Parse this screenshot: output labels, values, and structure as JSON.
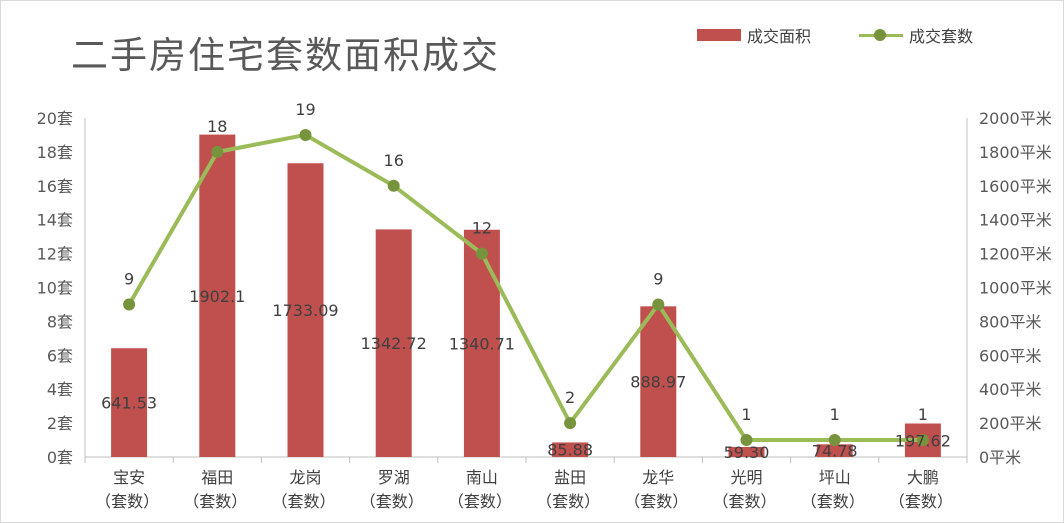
{
  "chart_data": {
    "type": "bar",
    "title": "二手房住宅套数面积成交",
    "categories": [
      "宝安\n（套数）",
      "福田\n（套数）",
      "龙岗\n（套数）",
      "罗湖\n（套数）",
      "南山\n（套数）",
      "盐田\n（套数）",
      "龙华\n（套数）",
      "光明\n（套数）",
      "坪山\n（套数）",
      "大鹏\n（套数）"
    ],
    "series": [
      {
        "name": "成交面积",
        "type": "bar",
        "axis": "right",
        "color": "#c0504d",
        "values": [
          641.53,
          1902.1,
          1733.09,
          1342.72,
          1340.71,
          85.88,
          888.97,
          59.3,
          74.78,
          197.62
        ],
        "labels": [
          "641.53",
          "1902.1",
          "1733.09",
          "1342.72",
          "1340.71",
          "85.88",
          "888.97",
          "59.30",
          "74.78",
          "197.62"
        ]
      },
      {
        "name": "成交套数",
        "type": "line",
        "axis": "left",
        "color": "#9bbb59",
        "marker_color": "#77933c",
        "values": [
          9,
          18,
          19,
          16,
          12,
          2,
          9,
          1,
          1,
          1
        ],
        "labels": [
          "9",
          "18",
          "19",
          "16",
          "12",
          "2",
          "9",
          "1",
          "1",
          "1"
        ]
      }
    ],
    "y_left": {
      "ylim": [
        0,
        20
      ],
      "ticks": [
        "0套",
        "2套",
        "4套",
        "6套",
        "8套",
        "10套",
        "12套",
        "14套",
        "16套",
        "18套",
        "20套"
      ]
    },
    "y_right": {
      "ylim": [
        0,
        2000
      ],
      "ticks": [
        "0平米",
        "200平米",
        "400平米",
        "600平米",
        "800平米",
        "1000平米",
        "1200平米",
        "1400平米",
        "1600平米",
        "1800平米",
        "2000平米"
      ]
    },
    "grid": false,
    "legend": "top-right"
  }
}
